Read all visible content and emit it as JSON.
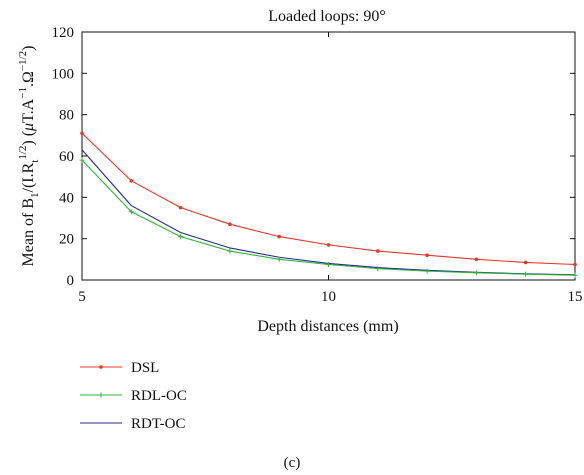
{
  "chart_data": {
    "type": "line",
    "title": "Loaded loops: 90°",
    "xlabel": "Depth distances (mm)",
    "ylabel": {
      "prefix": "Mean of B",
      "sub1": "1",
      "mid1": "/(I.R",
      "sub2": "t",
      "sup2": "1/2",
      "mid2": ") (",
      "mu": "μ",
      "mid3": "T.A",
      "sup3": "−1",
      "mid4": ".Ω",
      "sup4": "−1/2",
      "end": ")"
    },
    "x": [
      5,
      6,
      7,
      8,
      9,
      10,
      11,
      12,
      13,
      14,
      15
    ],
    "xlim": [
      5,
      15
    ],
    "ylim": [
      0,
      120
    ],
    "xticks": [
      5,
      10,
      15
    ],
    "yticks": [
      0,
      20,
      40,
      60,
      80,
      100,
      120
    ],
    "grid": false,
    "legend_position": "below-left",
    "series": [
      {
        "name": "DSL",
        "color": "#e8382a",
        "marker": "dot",
        "values": [
          71,
          48,
          35,
          27,
          21,
          17,
          14,
          12,
          10,
          8.5,
          7.5
        ]
      },
      {
        "name": "RDL-OC",
        "color": "#2fb53a",
        "marker": "plus",
        "values": [
          58,
          33,
          21,
          14,
          10,
          7.5,
          5.5,
          4.3,
          3.5,
          2.8,
          2.3
        ]
      },
      {
        "name": "RDT-OC",
        "color": "#2a2a8c",
        "marker": "none",
        "values": [
          63,
          36,
          23,
          15.5,
          11,
          8,
          6,
          4.7,
          3.7,
          3,
          2.5
        ]
      }
    ]
  },
  "caption": "(c)"
}
